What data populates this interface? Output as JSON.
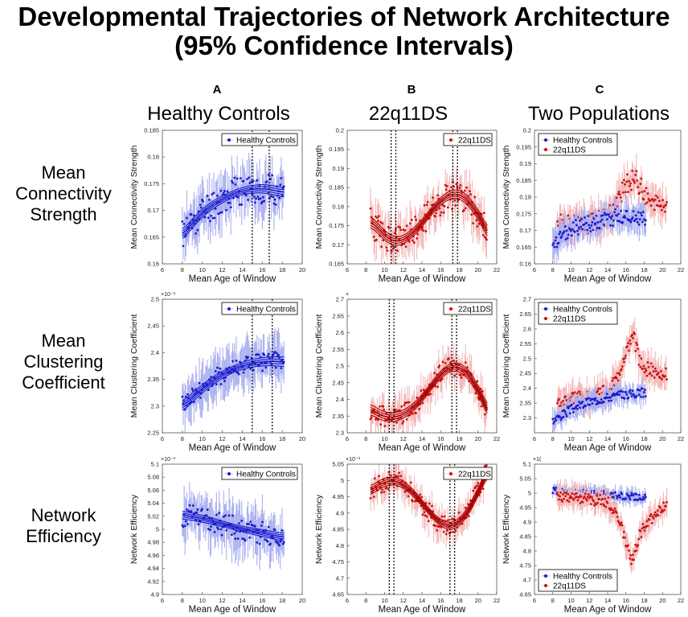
{
  "title_line1": "Developmental Trajectories of Network Architecture",
  "title_line2": "(95% Confidence Intervals)",
  "columns": [
    {
      "letter": "A",
      "heading": "Healthy Controls"
    },
    {
      "letter": "B",
      "heading": "22q11DS"
    },
    {
      "letter": "C",
      "heading": "Two Populations"
    }
  ],
  "rows": [
    {
      "label_lines": [
        "Mean",
        "Connectivity",
        "Strength"
      ]
    },
    {
      "label_lines": [
        "Mean",
        "Clustering",
        "Coefficient"
      ]
    },
    {
      "label_lines": [
        "Network",
        "Efficiency"
      ]
    }
  ],
  "colors": {
    "hc": "#1b1bcc",
    "hc_band": "#aab0f0",
    "ds": "#cc1111",
    "ds_fit": "#aa0000",
    "ds_band": "#f3b8b8"
  },
  "chart_data": [
    {
      "id": "A1",
      "type": "scatter",
      "xlabel": "Mean Age of Window",
      "ylabel": "Mean Connectivity Strength",
      "xlim": [
        6,
        20
      ],
      "ylim": [
        0.16,
        0.185
      ],
      "xticks": [
        "6",
        "8",
        "10",
        "12",
        "14",
        "16",
        "18",
        "20"
      ],
      "yticks": [
        "0.16",
        "0.165",
        "0.17",
        "0.175",
        "0.18",
        "0.185"
      ],
      "exponent": "",
      "legend": [
        "Healthy Controls"
      ],
      "legend_pos": "top-right",
      "series": [
        {
          "name": "Healthy Controls",
          "color": "hc",
          "x_range": [
            8,
            18.2
          ],
          "trend": [
            [
              8,
              0.1655
            ],
            [
              9,
              0.1678
            ],
            [
              10,
              0.1697
            ],
            [
              11,
              0.1711
            ],
            [
              12,
              0.1722
            ],
            [
              13,
              0.1731
            ],
            [
              14,
              0.1737
            ],
            [
              15,
              0.174
            ],
            [
              16,
              0.1741
            ],
            [
              17,
              0.1738
            ],
            [
              18,
              0.1734
            ]
          ],
          "noise": 0.003,
          "err": 0.0035,
          "seed": 11,
          "fit": true,
          "band": 0.0006
        }
      ],
      "vlines": [
        15,
        16.7
      ]
    },
    {
      "id": "B1",
      "type": "scatter",
      "xlabel": "Mean Age of Window",
      "ylabel": "Mean Connectivity Strength",
      "xlim": [
        6,
        22
      ],
      "ylim": [
        0.165,
        0.2
      ],
      "xticks": [
        "6",
        "8",
        "10",
        "12",
        "14",
        "16",
        "18",
        "20",
        "22"
      ],
      "yticks": [
        "0.165",
        "0.17",
        "0.175",
        "0.18",
        "0.185",
        "0.19",
        "0.195",
        "0.2"
      ],
      "exponent": "",
      "legend": [
        "22q11DS"
      ],
      "legend_pos": "top-right",
      "series": [
        {
          "name": "22q11DS",
          "color": "ds",
          "x_range": [
            8.5,
            21
          ],
          "trend": [
            [
              8.5,
              0.176
            ],
            [
              9.5,
              0.1735
            ],
            [
              10.5,
              0.1712
            ],
            [
              11.5,
              0.1708
            ],
            [
              12.5,
              0.1722
            ],
            [
              13.5,
              0.1745
            ],
            [
              14.5,
              0.1775
            ],
            [
              15.5,
              0.1805
            ],
            [
              16.5,
              0.1827
            ],
            [
              17.5,
              0.1835
            ],
            [
              18.5,
              0.1825
            ],
            [
              19.5,
              0.1795
            ],
            [
              20.5,
              0.1755
            ],
            [
              21,
              0.1725
            ]
          ],
          "noise": 0.004,
          "err": 0.004,
          "seed": 23,
          "fit": true,
          "band": 0.0009
        }
      ],
      "vlines": [
        10.7,
        11.2,
        17.3,
        17.8
      ]
    },
    {
      "id": "C1",
      "type": "scatter",
      "xlabel": "Mean Age of Window",
      "ylabel": "Mean Connectivity Strength",
      "xlim": [
        6,
        22
      ],
      "ylim": [
        0.16,
        0.2
      ],
      "xticks": [
        "6",
        "8",
        "10",
        "12",
        "14",
        "16",
        "18",
        "20",
        "22"
      ],
      "yticks": [
        "0.16",
        "0.165",
        "0.17",
        "0.175",
        "0.18",
        "0.185",
        "0.19",
        "0.195",
        "0.2"
      ],
      "exponent": "",
      "legend": [
        "Healthy Controls",
        "22q11DS"
      ],
      "legend_pos": "top-left",
      "series": [
        {
          "name": "22q11DS",
          "color": "ds",
          "x_range": [
            8.5,
            20.5
          ],
          "trend": [
            [
              8.5,
              0.172
            ],
            [
              10,
              0.1715
            ],
            [
              12,
              0.172
            ],
            [
              14,
              0.1745
            ],
            [
              15,
              0.178
            ],
            [
              16,
              0.1835
            ],
            [
              17,
              0.186
            ],
            [
              18,
              0.181
            ],
            [
              19,
              0.1775
            ],
            [
              20.5,
              0.178
            ]
          ],
          "noise": 0.003,
          "err": 0.004,
          "seed": 31,
          "fit": false,
          "band": 0
        },
        {
          "name": "Healthy Controls",
          "color": "hc",
          "x_range": [
            8,
            18.2
          ],
          "trend": [
            [
              8,
              0.165
            ],
            [
              9,
              0.168
            ],
            [
              10,
              0.1705
            ],
            [
              12,
              0.172
            ],
            [
              14,
              0.1735
            ],
            [
              16,
              0.1745
            ],
            [
              18,
              0.174
            ]
          ],
          "noise": 0.0025,
          "err": 0.0035,
          "seed": 37,
          "fit": false,
          "band": 0
        }
      ],
      "vlines": []
    },
    {
      "id": "A2",
      "type": "scatter",
      "xlabel": "Mean Age of Window",
      "ylabel": "Mean Clustering Coefficient",
      "xlim": [
        6,
        20
      ],
      "ylim": [
        2.25,
        2.5
      ],
      "xticks": [
        "6",
        "8",
        "10",
        "12",
        "14",
        "16",
        "18",
        "20"
      ],
      "yticks": [
        "2.25",
        "2.3",
        "2.35",
        "2.4",
        "2.45",
        "2.5"
      ],
      "exponent": "×10⁻³",
      "legend": [
        "Healthy Controls"
      ],
      "legend_pos": "top-right",
      "series": [
        {
          "name": "Healthy Controls",
          "color": "hc",
          "x_range": [
            8,
            18.2
          ],
          "trend": [
            [
              8,
              2.3
            ],
            [
              9,
              2.318
            ],
            [
              10,
              2.334
            ],
            [
              11,
              2.348
            ],
            [
              12,
              2.36
            ],
            [
              13,
              2.369
            ],
            [
              14,
              2.376
            ],
            [
              15,
              2.381
            ],
            [
              16,
              2.383
            ],
            [
              17,
              2.384
            ],
            [
              18,
              2.383
            ]
          ],
          "noise": 0.018,
          "err": 0.035,
          "seed": 41,
          "fit": true,
          "band": 0.006
        }
      ],
      "vlines": [
        15,
        17
      ]
    },
    {
      "id": "B2",
      "type": "scatter",
      "xlabel": "Mean Age of Window",
      "ylabel": "Mean Clustering Coefficient",
      "xlim": [
        6,
        22
      ],
      "ylim": [
        2.3,
        2.7
      ],
      "xticks": [
        "6",
        "8",
        "10",
        "12",
        "14",
        "16",
        "18",
        "20",
        "22"
      ],
      "yticks": [
        "2.3",
        "2.35",
        "2.4",
        "2.45",
        "2.5",
        "2.55",
        "2.6",
        "2.65",
        "2.7"
      ],
      "exponent": "×",
      "legend": [
        "22q11DS"
      ],
      "legend_pos": "top-right",
      "series": [
        {
          "name": "22q11DS",
          "color": "ds",
          "x_range": [
            8.5,
            21
          ],
          "trend": [
            [
              8.5,
              2.37
            ],
            [
              9.5,
              2.352
            ],
            [
              10.5,
              2.345
            ],
            [
              11.5,
              2.35
            ],
            [
              12.5,
              2.365
            ],
            [
              13.5,
              2.39
            ],
            [
              14.5,
              2.425
            ],
            [
              15.5,
              2.462
            ],
            [
              16.5,
              2.49
            ],
            [
              17.5,
              2.5
            ],
            [
              18.5,
              2.487
            ],
            [
              19.5,
              2.45
            ],
            [
              20.5,
              2.395
            ],
            [
              21,
              2.36
            ]
          ],
          "noise": 0.03,
          "err": 0.04,
          "seed": 53,
          "fit": true,
          "band": 0.01
        }
      ],
      "vlines": [
        10.5,
        11,
        17.2,
        17.7
      ]
    },
    {
      "id": "C2",
      "type": "scatter",
      "xlabel": "Mean Age of Window",
      "ylabel": "Mean Clustering Coefficient",
      "xlim": [
        6,
        22
      ],
      "ylim": [
        2.25,
        2.7
      ],
      "xticks": [
        "6",
        "8",
        "10",
        "12",
        "14",
        "16",
        "18",
        "20",
        "22"
      ],
      "yticks": [
        "2.3",
        "2.35",
        "2.4",
        "2.45",
        "2.5",
        "2.55",
        "2.6",
        "2.65",
        "2.7"
      ],
      "exponent": "",
      "legend": [
        "Healthy Controls",
        "22q11DS"
      ],
      "legend_pos": "top-left",
      "series": [
        {
          "name": "22q11DS",
          "color": "ds",
          "x_range": [
            8.5,
            20.5
          ],
          "trend": [
            [
              8.5,
              2.34
            ],
            [
              10,
              2.36
            ],
            [
              12,
              2.37
            ],
            [
              14,
              2.39
            ],
            [
              15,
              2.42
            ],
            [
              16,
              2.52
            ],
            [
              16.8,
              2.58
            ],
            [
              17.5,
              2.49
            ],
            [
              18.5,
              2.46
            ],
            [
              20.5,
              2.45
            ]
          ],
          "noise": 0.025,
          "err": 0.04,
          "seed": 61,
          "fit": false,
          "band": 0
        },
        {
          "name": "Healthy Controls",
          "color": "hc",
          "x_range": [
            8,
            18.2
          ],
          "trend": [
            [
              8,
              2.29
            ],
            [
              9,
              2.31
            ],
            [
              10,
              2.33
            ],
            [
              12,
              2.355
            ],
            [
              14,
              2.37
            ],
            [
              16,
              2.38
            ],
            [
              18,
              2.385
            ]
          ],
          "noise": 0.015,
          "err": 0.03,
          "seed": 67,
          "fit": false,
          "band": 0
        }
      ],
      "vlines": []
    },
    {
      "id": "A3",
      "type": "scatter",
      "xlabel": "Mean Age of Window",
      "ylabel": "Network Efficiency",
      "xlim": [
        6,
        20
      ],
      "ylim": [
        4.9,
        5.1
      ],
      "xticks": [
        "6",
        "8",
        "10",
        "12",
        "14",
        "16",
        "18",
        "20"
      ],
      "yticks": [
        "4.9",
        "4.92",
        "4.94",
        "4.96",
        "4.98",
        "5",
        "5.02",
        "5.04",
        "5.06",
        "5.08",
        "5.1"
      ],
      "exponent": "×10⁻³",
      "legend": [
        "Healthy Controls"
      ],
      "legend_pos": "top-right",
      "series": [
        {
          "name": "Healthy Controls",
          "color": "hc",
          "x_range": [
            8,
            18.2
          ],
          "trend": [
            [
              8,
              5.022
            ],
            [
              10,
              5.016
            ],
            [
              12,
              5.008
            ],
            [
              14,
              5.0
            ],
            [
              16,
              4.994
            ],
            [
              18,
              4.988
            ]
          ],
          "noise": 0.018,
          "err": 0.03,
          "seed": 71,
          "fit": true,
          "band": 0.004
        }
      ],
      "vlines": []
    },
    {
      "id": "B3",
      "type": "scatter",
      "xlabel": "Mean Age of Window",
      "ylabel": "Network Efficiency",
      "xlim": [
        6,
        22
      ],
      "ylim": [
        4.65,
        5.05
      ],
      "xticks": [
        "6",
        "8",
        "10",
        "12",
        "14",
        "16",
        "18",
        "20",
        "22"
      ],
      "yticks": [
        "4.65",
        "4.7",
        "4.75",
        "4.8",
        "4.85",
        "4.9",
        "4.95",
        "5",
        "5.05"
      ],
      "exponent": "×10⁻³",
      "legend": [
        "22q11DS"
      ],
      "legend_pos": "top-right",
      "series": [
        {
          "name": "22q11DS",
          "color": "ds",
          "x_range": [
            8.5,
            21
          ],
          "trend": [
            [
              8.5,
              4.97
            ],
            [
              9.5,
              4.99
            ],
            [
              10.5,
              5.0
            ],
            [
              11.5,
              4.995
            ],
            [
              12.5,
              4.975
            ],
            [
              13.5,
              4.945
            ],
            [
              14.5,
              4.91
            ],
            [
              15.5,
              4.878
            ],
            [
              16.5,
              4.86
            ],
            [
              17.5,
              4.862
            ],
            [
              18.5,
              4.89
            ],
            [
              19.5,
              4.94
            ],
            [
              20.5,
              5.0
            ],
            [
              21,
              5.03
            ]
          ],
          "noise": 0.03,
          "err": 0.035,
          "seed": 83,
          "fit": true,
          "band": 0.009
        }
      ],
      "vlines": [
        10.5,
        11,
        17,
        17.5
      ]
    },
    {
      "id": "C3",
      "type": "scatter",
      "xlabel": "Mean Age of Window",
      "ylabel": "Network Efficiency",
      "xlim": [
        6,
        22
      ],
      "ylim": [
        4.65,
        5.1
      ],
      "xticks": [
        "6",
        "8",
        "10",
        "12",
        "14",
        "16",
        "18",
        "20",
        "22"
      ],
      "yticks": [
        "4.65",
        "4.7",
        "4.75",
        "4.8",
        "4.85",
        "4.9",
        "4.95",
        "5",
        "5.05",
        "5.1"
      ],
      "exponent": "×1(",
      "legend": [
        "Healthy Controls",
        "22q11DS"
      ],
      "legend_pos": "bottom-left",
      "series": [
        {
          "name": "Healthy Controls",
          "color": "hc",
          "x_range": [
            8,
            18.2
          ],
          "trend": [
            [
              8,
              5.01
            ],
            [
              10,
              5.0
            ],
            [
              12,
              5.0
            ],
            [
              14,
              4.995
            ],
            [
              16,
              4.99
            ],
            [
              18,
              4.985
            ]
          ],
          "noise": 0.012,
          "err": 0.02,
          "seed": 89,
          "fit": false,
          "band": 0
        },
        {
          "name": "22q11DS",
          "color": "ds",
          "x_range": [
            8.5,
            20.5
          ],
          "trend": [
            [
              8.5,
              4.99
            ],
            [
              10,
              4.99
            ],
            [
              12,
              4.98
            ],
            [
              14,
              4.97
            ],
            [
              15,
              4.93
            ],
            [
              16,
              4.83
            ],
            [
              16.7,
              4.76
            ],
            [
              17.5,
              4.86
            ],
            [
              18.5,
              4.9
            ],
            [
              19.5,
              4.93
            ],
            [
              20.5,
              4.96
            ]
          ],
          "noise": 0.02,
          "err": 0.035,
          "seed": 97,
          "fit": false,
          "band": 0
        }
      ],
      "vlines": []
    }
  ]
}
